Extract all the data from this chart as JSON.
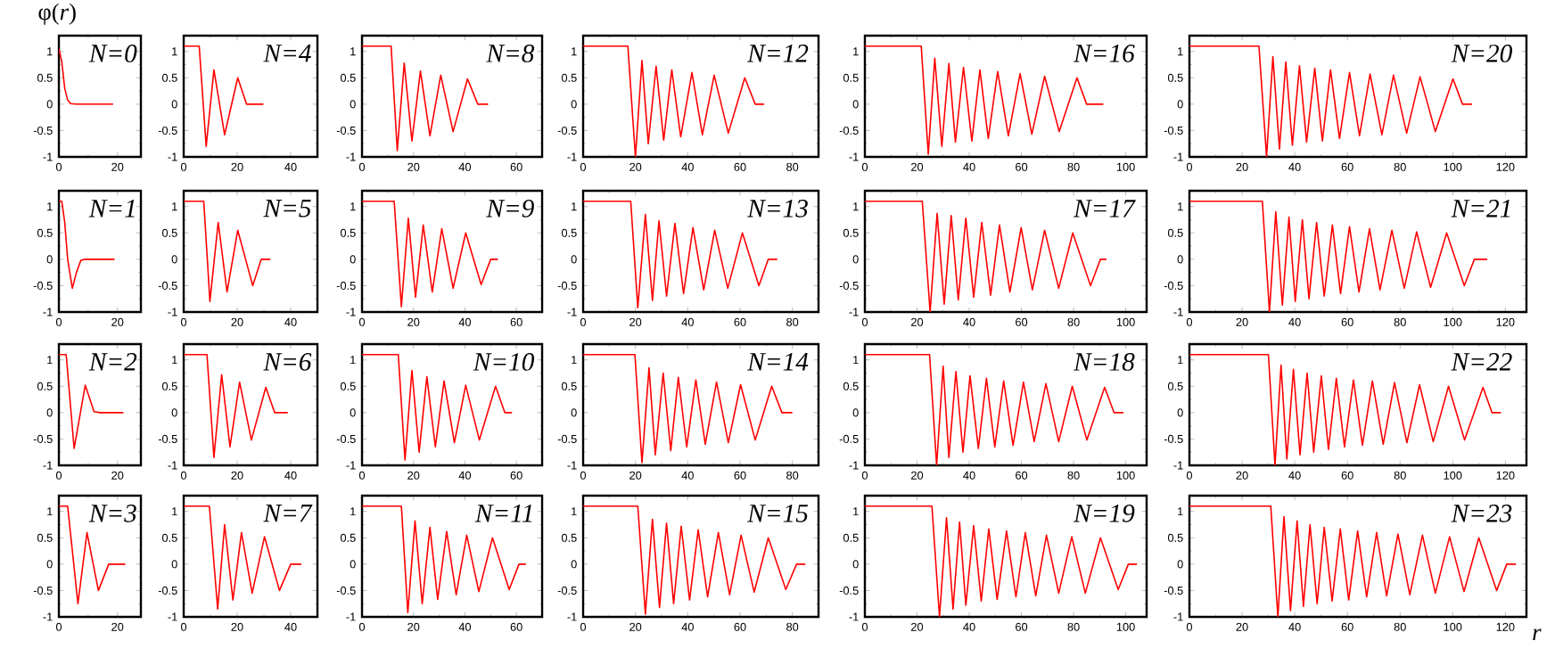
{
  "chart_data": [
    {
      "type": "line",
      "title": "N=0",
      "ylabel": "φ(*r*)",
      "xlim": [
        0,
        28
      ],
      "xticks": [
        0,
        20
      ],
      "ylim": [
        -1,
        1.3
      ],
      "yticks": [
        -1,
        -0.5,
        0,
        0.5,
        1
      ],
      "series": [
        {
          "color": "#ff0000",
          "x": [
            0,
            1,
            2,
            3,
            4,
            6,
            18.5
          ],
          "values": [
            1.05,
            0.8,
            0.3,
            0.08,
            0.01,
            0,
            0
          ]
        }
      ]
    },
    {
      "type": "line",
      "title": "N=4",
      "xlim": [
        0,
        50
      ],
      "xticks": [
        0,
        20,
        40
      ],
      "ylim": [
        -1,
        1.3
      ],
      "yticks": [
        -1,
        -0.5,
        0,
        0.5,
        1
      ],
      "series": [
        {
          "color": "#ff0000",
          "x": [
            0,
            5.8,
            8.4,
            11.3,
            15.3,
            20.2,
            23.5,
            29.8
          ],
          "values": [
            1.1,
            1.1,
            -0.8,
            0.65,
            -0.58,
            0.5,
            0,
            0
          ]
        }
      ]
    },
    {
      "type": "line",
      "title": "N=8",
      "xlim": [
        0,
        70
      ],
      "xticks": [
        0,
        20,
        40,
        60
      ],
      "ylim": [
        -1,
        1.3
      ],
      "yticks": [
        -1,
        -0.5,
        0,
        0.5,
        1
      ],
      "series": [
        {
          "color": "#ff0000",
          "x": [
            0,
            11.3,
            13.7,
            16.4,
            19.4,
            22.7,
            26.4,
            30.6,
            35.4,
            41,
            45,
            49
          ],
          "values": [
            1.1,
            1.1,
            -0.88,
            0.78,
            -0.7,
            0.63,
            -0.6,
            0.55,
            -0.52,
            0.48,
            0,
            0
          ]
        }
      ]
    },
    {
      "type": "line",
      "title": "N=12",
      "xlim": [
        0,
        90
      ],
      "xticks": [
        0,
        20,
        40,
        60,
        80
      ],
      "ylim": [
        -1,
        1.3
      ],
      "yticks": [
        -1,
        -0.5,
        0,
        0.5,
        1
      ],
      "series": [
        {
          "color": "#ff0000",
          "x": [
            0,
            17.1,
            20,
            22.5,
            24.9,
            27.9,
            30.8,
            33.9,
            37.3,
            41.6,
            45.6,
            50.1,
            55.5,
            61.8,
            65.8,
            69.2
          ],
          "values": [
            1.1,
            1.1,
            -1,
            0.83,
            -0.75,
            0.72,
            -0.68,
            0.65,
            -0.62,
            0.6,
            -0.58,
            0.55,
            -0.55,
            0.5,
            0,
            0
          ]
        }
      ]
    },
    {
      "type": "line",
      "title": "N=16",
      "xlim": [
        0,
        108
      ],
      "xticks": [
        0,
        20,
        40,
        60,
        80,
        100
      ],
      "ylim": [
        -1,
        1.3
      ],
      "yticks": [
        -1,
        -0.5,
        0,
        0.5,
        1
      ],
      "series": [
        {
          "color": "#ff0000",
          "x": [
            0,
            21.6,
            24.3,
            26.8,
            29.5,
            32.2,
            34.7,
            37.8,
            41,
            44.1,
            47.3,
            50.9,
            55,
            59.5,
            64,
            68.9,
            74.5,
            81.3,
            85,
            91.4
          ],
          "values": [
            1.1,
            1.1,
            -0.95,
            0.87,
            -0.8,
            0.77,
            -0.72,
            0.7,
            -0.7,
            0.65,
            -0.65,
            0.62,
            -0.6,
            0.58,
            -0.57,
            0.53,
            -0.52,
            0.5,
            0,
            0
          ]
        }
      ]
    },
    {
      "type": "line",
      "title": "N=20",
      "xlim": [
        0,
        128
      ],
      "xticks": [
        0,
        20,
        40,
        60,
        80,
        100,
        120
      ],
      "ylim": [
        -1,
        1.3
      ],
      "yticks": [
        -1,
        -0.5,
        0,
        0.5,
        1
      ],
      "series": [
        {
          "color": "#ff0000",
          "x": [
            0,
            26.4,
            29.3,
            31.7,
            34.2,
            36.6,
            39.1,
            41.8,
            44.5,
            47.6,
            50.5,
            53.6,
            57,
            60.8,
            64.6,
            68.6,
            73.1,
            77.5,
            82.5,
            87.6,
            93.4,
            100.1,
            103.7,
            107.3
          ],
          "values": [
            1.1,
            1.1,
            -1,
            0.9,
            -0.85,
            0.8,
            -0.78,
            0.73,
            -0.72,
            0.68,
            -0.7,
            0.65,
            -0.65,
            0.6,
            -0.6,
            0.57,
            -0.58,
            0.55,
            -0.55,
            0.52,
            -0.52,
            0.48,
            0,
            0
          ]
        }
      ]
    },
    {
      "type": "line",
      "title": "N=1",
      "xlim": [
        0,
        28
      ],
      "xticks": [
        0,
        20
      ],
      "ylim": [
        -1,
        1.3
      ],
      "yticks": [
        -1,
        -0.5,
        0,
        0.5,
        1
      ],
      "series": [
        {
          "color": "#ff0000",
          "x": [
            0,
            1,
            2,
            3,
            4.6,
            6,
            7.5,
            9,
            19
          ],
          "values": [
            1.1,
            1.1,
            0.7,
            0,
            -0.55,
            -0.25,
            -0.02,
            0,
            0
          ]
        }
      ]
    },
    {
      "type": "line",
      "title": "N=5",
      "xlim": [
        0,
        50
      ],
      "xticks": [
        0,
        20,
        40
      ],
      "ylim": [
        -1,
        1.3
      ],
      "yticks": [
        -1,
        -0.5,
        0,
        0.5,
        1
      ],
      "series": [
        {
          "color": "#ff0000",
          "x": [
            0,
            7.5,
            9.8,
            12.9,
            16.2,
            20.2,
            25.8,
            29,
            32.4
          ],
          "values": [
            1.1,
            1.1,
            -0.8,
            0.7,
            -0.62,
            0.55,
            -0.5,
            0,
            0
          ]
        }
      ]
    },
    {
      "type": "line",
      "title": "N=9",
      "xlim": [
        0,
        70
      ],
      "xticks": [
        0,
        20,
        40,
        60
      ],
      "ylim": [
        -1,
        1.3
      ],
      "yticks": [
        -1,
        -0.5,
        0,
        0.5,
        1
      ],
      "series": [
        {
          "color": "#ff0000",
          "x": [
            0,
            12.5,
            15.3,
            18,
            20.8,
            23.8,
            27.3,
            31,
            35.4,
            40.3,
            46.3,
            50,
            52.8
          ],
          "values": [
            1.1,
            1.1,
            -0.9,
            0.78,
            -0.72,
            0.65,
            -0.62,
            0.58,
            -0.55,
            0.5,
            -0.48,
            0,
            0
          ]
        }
      ]
    },
    {
      "type": "line",
      "title": "N=13",
      "xlim": [
        0,
        90
      ],
      "xticks": [
        0,
        20,
        40,
        60,
        80
      ],
      "ylim": [
        -1,
        1.3
      ],
      "yticks": [
        -1,
        -0.5,
        0,
        0.5,
        1
      ],
      "series": [
        {
          "color": "#ff0000",
          "x": [
            0,
            18.2,
            20.9,
            23.8,
            26.5,
            29,
            31.9,
            35.1,
            38.4,
            42,
            46.1,
            50.3,
            55.3,
            60.9,
            67.2,
            70.8,
            74.2
          ],
          "values": [
            1.1,
            1.1,
            -0.92,
            0.85,
            -0.78,
            0.73,
            -0.7,
            0.68,
            -0.65,
            0.6,
            -0.58,
            0.55,
            -0.55,
            0.5,
            -0.5,
            0,
            0
          ]
        }
      ]
    },
    {
      "type": "line",
      "title": "N=17",
      "xlim": [
        0,
        108
      ],
      "xticks": [
        0,
        20,
        40,
        60,
        80,
        100
      ],
      "ylim": [
        -1,
        1.3
      ],
      "yticks": [
        -1,
        -0.5,
        0,
        0.5,
        1
      ],
      "series": [
        {
          "color": "#ff0000",
          "x": [
            0,
            22,
            25,
            27.7,
            30.4,
            33.1,
            35.8,
            38.7,
            41.7,
            44.8,
            48.2,
            51.6,
            55.6,
            59.9,
            64.2,
            68.9,
            74.3,
            79.7,
            86.5,
            90.3,
            92.6
          ],
          "values": [
            1.1,
            1.1,
            -1,
            0.87,
            -0.85,
            0.83,
            -0.77,
            0.78,
            -0.72,
            0.7,
            -0.68,
            0.65,
            -0.62,
            0.6,
            -0.58,
            0.55,
            -0.55,
            0.5,
            -0.5,
            0,
            0
          ]
        }
      ]
    },
    {
      "type": "line",
      "title": "N=21",
      "xlim": [
        0,
        128
      ],
      "xticks": [
        0,
        20,
        40,
        60,
        80,
        100,
        120
      ],
      "ylim": [
        -1,
        1.3
      ],
      "yticks": [
        -1,
        -0.5,
        0,
        0.5,
        1
      ],
      "series": [
        {
          "color": "#ff0000",
          "x": [
            0,
            27.7,
            30.4,
            32.8,
            35.3,
            37.8,
            40.2,
            42.9,
            45.4,
            48.3,
            51.2,
            54.3,
            57.4,
            60.8,
            64.4,
            68.4,
            72.4,
            76.9,
            81.6,
            86.3,
            91.6,
            97.7,
            104.4,
            108.2,
            113.1
          ],
          "values": [
            1.1,
            1.1,
            -1,
            0.9,
            -0.87,
            0.8,
            -0.8,
            0.75,
            -0.75,
            0.7,
            -0.7,
            0.65,
            -0.65,
            0.62,
            -0.62,
            0.58,
            -0.58,
            0.55,
            -0.55,
            0.52,
            -0.53,
            0.5,
            -0.5,
            0,
            0
          ]
        }
      ]
    },
    {
      "type": "line",
      "title": "N=2",
      "xlim": [
        0,
        28
      ],
      "xticks": [
        0,
        20
      ],
      "ylim": [
        -1,
        1.3
      ],
      "yticks": [
        -1,
        -0.5,
        0,
        0.5,
        1
      ],
      "series": [
        {
          "color": "#ff0000",
          "x": [
            0,
            2.5,
            5.2,
            9,
            12,
            14,
            22
          ],
          "values": [
            1.1,
            1.1,
            -0.68,
            0.52,
            0.02,
            0,
            0
          ]
        }
      ]
    },
    {
      "type": "line",
      "title": "N=6",
      "xlim": [
        0,
        50
      ],
      "xticks": [
        0,
        20,
        40
      ],
      "ylim": [
        -1,
        1.3
      ],
      "yticks": [
        -1,
        -0.5,
        0,
        0.5,
        1
      ],
      "series": [
        {
          "color": "#ff0000",
          "x": [
            0,
            8.7,
            11.3,
            14.2,
            17.3,
            20.9,
            25.3,
            30.7,
            34,
            38.9
          ],
          "values": [
            1.1,
            1.1,
            -0.85,
            0.72,
            -0.65,
            0.58,
            -0.52,
            0.48,
            0,
            0
          ]
        }
      ]
    },
    {
      "type": "line",
      "title": "N=10",
      "xlim": [
        0,
        70
      ],
      "xticks": [
        0,
        20,
        40,
        60
      ],
      "ylim": [
        -1,
        1.3
      ],
      "yticks": [
        -1,
        -0.5,
        0,
        0.5,
        1
      ],
      "series": [
        {
          "color": "#ff0000",
          "x": [
            0,
            14.1,
            16.7,
            19.4,
            22.2,
            25.2,
            28.5,
            31.9,
            35.9,
            40.3,
            45.6,
            51.9,
            55.5,
            58.3
          ],
          "values": [
            1.1,
            1.1,
            -0.9,
            0.8,
            -0.75,
            0.68,
            -0.65,
            0.6,
            -0.57,
            0.52,
            -0.52,
            0.5,
            0,
            0
          ]
        }
      ]
    },
    {
      "type": "line",
      "title": "N=14",
      "xlim": [
        0,
        90
      ],
      "xticks": [
        0,
        20,
        40,
        60,
        80
      ],
      "ylim": [
        -1,
        1.3
      ],
      "yticks": [
        -1,
        -0.5,
        0,
        0.5,
        1
      ],
      "series": [
        {
          "color": "#ff0000",
          "x": [
            0,
            19.8,
            22.5,
            25.2,
            27.6,
            30.6,
            33.5,
            36.4,
            39.6,
            43.1,
            46.7,
            51,
            55.5,
            60.2,
            65.8,
            72.1,
            76,
            80
          ],
          "values": [
            1.1,
            1.1,
            -0.95,
            0.85,
            -0.8,
            0.75,
            -0.72,
            0.67,
            -0.65,
            0.62,
            -0.6,
            0.58,
            -0.57,
            0.53,
            -0.52,
            0.5,
            0,
            0
          ]
        }
      ]
    },
    {
      "type": "line",
      "title": "N=18",
      "xlim": [
        0,
        108
      ],
      "xticks": [
        0,
        20,
        40,
        60,
        80,
        100
      ],
      "ylim": [
        -1,
        1.3
      ],
      "yticks": [
        -1,
        -0.5,
        0,
        0.5,
        1
      ],
      "series": [
        {
          "color": "#ff0000",
          "x": [
            0,
            24.8,
            27.5,
            30,
            32.2,
            34.9,
            37.6,
            40.3,
            43.5,
            46.6,
            49.8,
            53.2,
            56.8,
            60.8,
            64.9,
            69.4,
            74.3,
            79.5,
            85.1,
            91.9,
            95.5,
            99.1
          ],
          "values": [
            1.1,
            1.1,
            -1,
            0.88,
            -0.85,
            0.78,
            -0.75,
            0.7,
            -0.68,
            0.65,
            -0.65,
            0.6,
            -0.62,
            0.58,
            -0.55,
            0.55,
            -0.55,
            0.5,
            -0.52,
            0.48,
            0,
            0
          ]
        }
      ]
    },
    {
      "type": "line",
      "title": "N=22",
      "xlim": [
        0,
        128
      ],
      "xticks": [
        0,
        20,
        40,
        60,
        80,
        100,
        120
      ],
      "ylim": [
        -1,
        1.3
      ],
      "yticks": [
        -1,
        -0.5,
        0,
        0.5,
        1
      ],
      "series": [
        {
          "color": "#ff0000",
          "x": [
            0,
            30,
            32.5,
            34.8,
            37,
            39.5,
            42,
            44.7,
            47.2,
            50.1,
            52.8,
            55.8,
            58.9,
            62.3,
            65.7,
            69.5,
            73.6,
            77.9,
            82.6,
            87.4,
            92.6,
            98.4,
            104.5,
            111.5,
            114.9,
            118.3
          ],
          "values": [
            1.1,
            1.1,
            -1,
            0.9,
            -0.88,
            0.82,
            -0.8,
            0.75,
            -0.75,
            0.7,
            -0.7,
            0.65,
            -0.65,
            0.62,
            -0.62,
            0.6,
            -0.6,
            0.57,
            -0.57,
            0.53,
            -0.55,
            0.5,
            -0.52,
            0.48,
            0,
            0
          ]
        }
      ]
    },
    {
      "type": "line",
      "title": "N=3",
      "xlim": [
        0,
        28
      ],
      "xticks": [
        0,
        20
      ],
      "ylim": [
        -1,
        1.3
      ],
      "yticks": [
        -1,
        -0.5,
        0,
        0.5,
        1
      ],
      "series": [
        {
          "color": "#ff0000",
          "x": [
            0,
            3,
            6.5,
            9.6,
            13.5,
            17,
            22.7
          ],
          "values": [
            1.1,
            1.1,
            -0.75,
            0.6,
            -0.5,
            0,
            0
          ]
        }
      ]
    },
    {
      "type": "line",
      "title": "N=7",
      "xlim": [
        0,
        50
      ],
      "xticks": [
        0,
        20,
        40
      ],
      "ylim": [
        -1,
        1.3
      ],
      "yticks": [
        -1,
        -0.5,
        0,
        0.5,
        1
      ],
      "series": [
        {
          "color": "#ff0000",
          "x": [
            0,
            9.6,
            12.7,
            15.3,
            18.4,
            21.6,
            25.6,
            30.2,
            35.8,
            40,
            44
          ],
          "values": [
            1.1,
            1.1,
            -0.85,
            0.75,
            -0.68,
            0.6,
            -0.55,
            0.52,
            -0.5,
            0,
            0
          ]
        }
      ]
    },
    {
      "type": "line",
      "title": "N=11",
      "xlim": [
        0,
        70
      ],
      "xticks": [
        0,
        20,
        40,
        60
      ],
      "ylim": [
        -1,
        1.3
      ],
      "yticks": [
        -1,
        -0.5,
        0,
        0.5,
        1
      ],
      "series": [
        {
          "color": "#ff0000",
          "x": [
            0,
            15.3,
            17.8,
            20.6,
            23.4,
            26.4,
            29.4,
            32.9,
            36.6,
            40.7,
            45.4,
            50.7,
            57.2,
            61,
            63.7
          ],
          "values": [
            1.1,
            1.1,
            -0.92,
            0.82,
            -0.75,
            0.7,
            -0.67,
            0.62,
            -0.58,
            0.55,
            -0.52,
            0.5,
            -0.48,
            0,
            0
          ]
        }
      ]
    },
    {
      "type": "line",
      "title": "N=15",
      "xlim": [
        0,
        90
      ],
      "xticks": [
        0,
        20,
        40,
        60,
        80
      ],
      "ylim": [
        -1,
        1.3
      ],
      "yticks": [
        -1,
        -0.5,
        0,
        0.5,
        1
      ],
      "series": [
        {
          "color": "#ff0000",
          "x": [
            0,
            20.9,
            23.8,
            26.5,
            29.2,
            31.9,
            34.6,
            37.5,
            40.7,
            44,
            47.6,
            51.7,
            56,
            60.4,
            65.4,
            70.8,
            77.5,
            81.6,
            85
          ],
          "values": [
            1.1,
            1.1,
            -0.95,
            0.85,
            -0.82,
            0.78,
            -0.75,
            0.72,
            -0.68,
            0.65,
            -0.62,
            0.6,
            -0.58,
            0.55,
            -0.53,
            0.5,
            -0.48,
            0,
            0
          ]
        }
      ]
    },
    {
      "type": "line",
      "title": "N=19",
      "xlim": [
        0,
        108
      ],
      "xticks": [
        0,
        20,
        40,
        60,
        80,
        100
      ],
      "ylim": [
        -1,
        1.3
      ],
      "yticks": [
        -1,
        -0.5,
        0,
        0.5,
        1
      ],
      "series": [
        {
          "color": "#ff0000",
          "x": [
            0,
            25.7,
            28.6,
            31.3,
            33.8,
            36.3,
            38.7,
            41.7,
            44.6,
            47.5,
            50.7,
            54.3,
            57.9,
            61.5,
            65.5,
            69.6,
            74.3,
            79.3,
            84.5,
            90.3,
            97.1,
            101,
            104.3
          ],
          "values": [
            1.1,
            1.1,
            -1,
            0.88,
            -0.85,
            0.8,
            -0.78,
            0.73,
            -0.7,
            0.67,
            -0.67,
            0.63,
            -0.62,
            0.6,
            -0.6,
            0.55,
            -0.55,
            0.52,
            -0.55,
            0.5,
            -0.48,
            0,
            0
          ]
        }
      ]
    },
    {
      "type": "line",
      "title": "N=23",
      "xlabel": "r",
      "xlim": [
        0,
        128
      ],
      "xticks": [
        0,
        20,
        40,
        60,
        80,
        100,
        120
      ],
      "ylim": [
        -1,
        1.3
      ],
      "yticks": [
        -1,
        -0.5,
        0,
        0.5,
        1
      ],
      "series": [
        {
          "color": "#ff0000",
          "x": [
            0,
            30.9,
            33.6,
            35.9,
            38.4,
            40.9,
            43.3,
            45.8,
            48.5,
            51.2,
            54.2,
            57.3,
            60.5,
            63.9,
            67.3,
            71.1,
            74.9,
            79.2,
            83.7,
            88.5,
            93.4,
            98.8,
            104.3,
            109.9,
            116.7,
            120.5,
            124
          ],
          "values": [
            1.1,
            1.1,
            -1,
            0.9,
            -0.88,
            0.82,
            -0.8,
            0.75,
            -0.75,
            0.7,
            -0.7,
            0.67,
            -0.68,
            0.63,
            -0.62,
            0.6,
            -0.6,
            0.57,
            -0.58,
            0.55,
            -0.55,
            0.52,
            -0.52,
            0.5,
            -0.5,
            0,
            0
          ]
        }
      ]
    }
  ]
}
